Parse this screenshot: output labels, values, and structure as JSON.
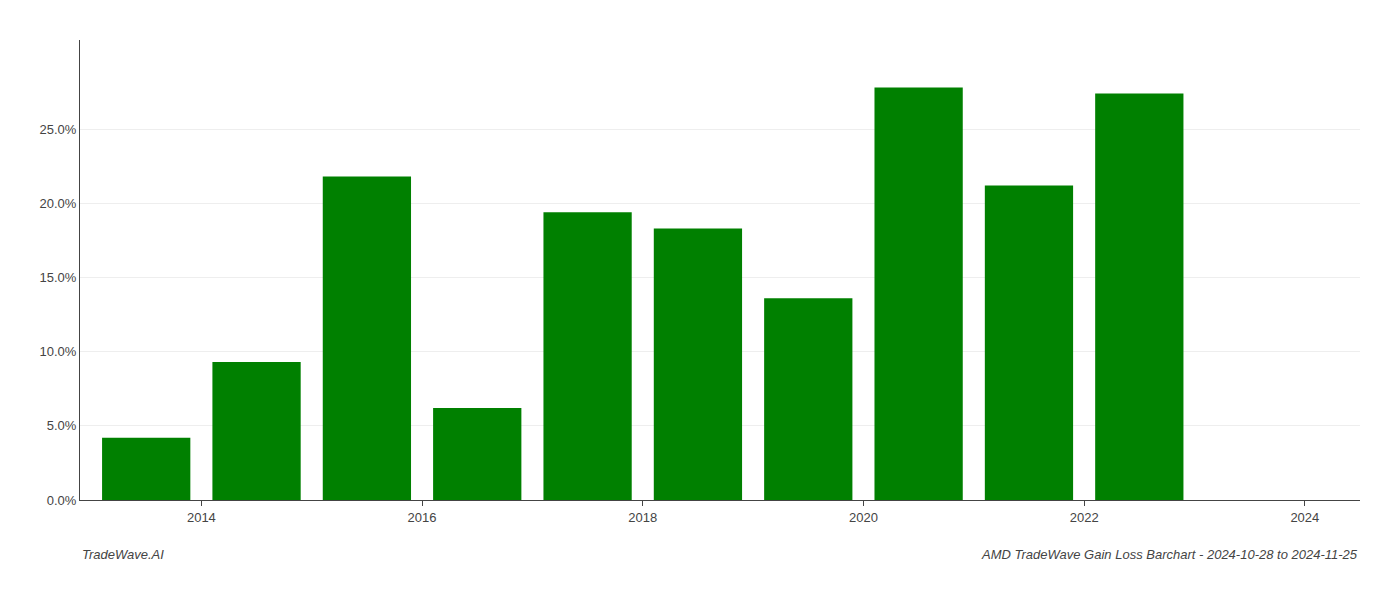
{
  "chart_data": {
    "type": "bar",
    "x": [
      2014,
      2015,
      2016,
      2017,
      2018,
      2019,
      2020,
      2021,
      2022,
      2023
    ],
    "values": [
      0.042,
      0.093,
      0.218,
      0.062,
      0.194,
      0.183,
      0.136,
      0.278,
      0.212,
      0.274
    ],
    "color": "#008000",
    "xlim": [
      2013.4,
      2025.0
    ],
    "xticks": [
      {
        "value": 2014.5,
        "label": "2014"
      },
      {
        "value": 2016.5,
        "label": "2016"
      },
      {
        "value": 2018.5,
        "label": "2018"
      },
      {
        "value": 2020.5,
        "label": "2020"
      },
      {
        "value": 2022.5,
        "label": "2022"
      },
      {
        "value": 2024.5,
        "label": "2024"
      }
    ],
    "ylim": [
      0,
      0.31
    ],
    "yticks": [
      {
        "value": 0.0,
        "label": "0.0%"
      },
      {
        "value": 0.05,
        "label": "5.0%"
      },
      {
        "value": 0.1,
        "label": "10.0%"
      },
      {
        "value": 0.15,
        "label": "15.0%"
      },
      {
        "value": 0.2,
        "label": "20.0%"
      },
      {
        "value": 0.25,
        "label": "25.0%"
      }
    ],
    "grid": true,
    "annotations": [
      "TradeWave.AI",
      "AMD TradeWave Gain Loss Barchart - 2024-10-28 to 2024-11-25"
    ]
  }
}
